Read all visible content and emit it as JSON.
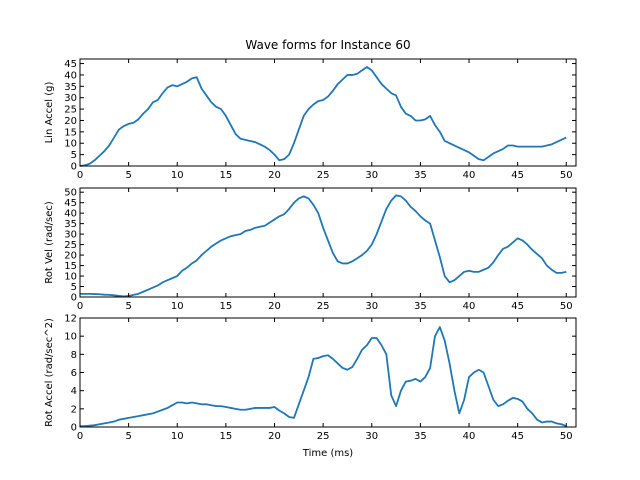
{
  "figure": {
    "title": "Wave forms for Instance 60",
    "line_color": "#1f77b4"
  },
  "chart_data": [
    {
      "type": "line",
      "ylabel": "Lin Accel (g)",
      "xlabel": "",
      "xlim": [
        0,
        51
      ],
      "ylim": [
        0,
        47
      ],
      "xticks": [
        0,
        5,
        10,
        15,
        20,
        25,
        30,
        35,
        40,
        45,
        50
      ],
      "yticks": [
        0,
        5,
        10,
        15,
        20,
        25,
        30,
        35,
        40,
        45
      ],
      "x": [
        0,
        0.5,
        1,
        1.5,
        2,
        2.5,
        3,
        3.5,
        4,
        4.5,
        5,
        5.5,
        6,
        6.5,
        7,
        7.5,
        8,
        8.5,
        9,
        9.5,
        10,
        10.5,
        11,
        11.5,
        12,
        12.5,
        13,
        13.5,
        14,
        14.5,
        15,
        15.5,
        16,
        16.5,
        17,
        17.5,
        18,
        18.5,
        19,
        19.5,
        20,
        20.5,
        21,
        21.5,
        22,
        22.5,
        23,
        23.5,
        24,
        24.5,
        25,
        25.5,
        26,
        26.5,
        27,
        27.5,
        28,
        28.5,
        29,
        29.5,
        30,
        30.5,
        31,
        31.5,
        32,
        32.5,
        33,
        33.5,
        34,
        34.5,
        35,
        35.5,
        36,
        36.5,
        37,
        37.5,
        38,
        38.5,
        39,
        39.5,
        40,
        40.5,
        41,
        41.5,
        42,
        42.5,
        43,
        43.5,
        44,
        44.5,
        45,
        45.5,
        46,
        46.5,
        47,
        47.5,
        48,
        48.5,
        49,
        49.5,
        50
      ],
      "y": [
        0,
        0.3,
        1,
        2.5,
        4.5,
        6.5,
        9,
        12.5,
        16,
        17.5,
        18.5,
        19,
        20.5,
        23,
        25,
        28,
        29,
        32,
        34.5,
        35.5,
        35,
        36,
        37,
        38.5,
        39,
        34,
        31,
        28,
        26,
        25,
        22,
        18,
        14,
        12,
        11.5,
        11,
        10.5,
        9.5,
        8.5,
        7,
        5,
        2.5,
        3,
        5,
        10,
        16,
        22,
        25,
        27,
        28.5,
        29,
        30.5,
        33,
        36,
        38,
        40,
        40,
        40.5,
        42,
        43.5,
        42,
        39,
        36,
        34,
        32,
        31,
        26,
        23,
        22,
        20,
        20,
        20.5,
        22,
        18,
        15,
        11,
        10,
        9,
        8,
        7,
        6,
        4.5,
        3,
        2.5,
        4,
        5.5,
        6.5,
        7.5,
        9,
        9,
        8.5,
        8.5,
        8.5,
        8.5,
        8.5,
        8.5,
        9,
        9.5,
        10.5,
        11.5,
        12.5
      ]
    },
    {
      "type": "line",
      "ylabel": "Rot Vel (rad/sec)",
      "xlabel": "",
      "xlim": [
        0,
        51
      ],
      "ylim": [
        0,
        52
      ],
      "xticks": [
        0,
        5,
        10,
        15,
        20,
        25,
        30,
        35,
        40,
        45,
        50
      ],
      "yticks": [
        0,
        5,
        10,
        15,
        20,
        25,
        30,
        35,
        40,
        45,
        50
      ],
      "x": [
        0,
        0.5,
        1,
        1.5,
        2,
        2.5,
        3,
        3.5,
        4,
        4.5,
        5,
        5.5,
        6,
        6.5,
        7,
        7.5,
        8,
        8.5,
        9,
        9.5,
        10,
        10.5,
        11,
        11.5,
        12,
        12.5,
        13,
        13.5,
        14,
        14.5,
        15,
        15.5,
        16,
        16.5,
        17,
        17.5,
        18,
        18.5,
        19,
        19.5,
        20,
        20.5,
        21,
        21.5,
        22,
        22.5,
        23,
        23.5,
        24,
        24.5,
        25,
        25.5,
        26,
        26.5,
        27,
        27.5,
        28,
        28.5,
        29,
        29.5,
        30,
        30.5,
        31,
        31.5,
        32,
        32.5,
        33,
        33.5,
        34,
        34.5,
        35,
        35.5,
        36,
        36.5,
        37,
        37.5,
        38,
        38.5,
        39,
        39.5,
        40,
        40.5,
        41,
        41.5,
        42,
        42.5,
        43,
        43.5,
        44,
        44.5,
        45,
        45.5,
        46,
        46.5,
        47,
        47.5,
        48,
        48.5,
        49,
        49.5,
        50
      ],
      "y": [
        1.5,
        1.5,
        1.5,
        1.4,
        1.3,
        1.1,
        1,
        0.8,
        0.5,
        0.3,
        0.5,
        1,
        1.5,
        2.5,
        3.5,
        4.5,
        5.5,
        7,
        8,
        9,
        10,
        12.5,
        14,
        16,
        17.5,
        20,
        22,
        24,
        25.5,
        27,
        28,
        29,
        29.5,
        30,
        31.5,
        32,
        33,
        33.5,
        34,
        35.5,
        37,
        38.5,
        39.5,
        42,
        45,
        47,
        48,
        47,
        44,
        40,
        33,
        27,
        21,
        17,
        16,
        16,
        17,
        18.5,
        20,
        22,
        25,
        30,
        36,
        42,
        46,
        48.5,
        48,
        46,
        43,
        41,
        38.5,
        36.5,
        35,
        27,
        19,
        10,
        7,
        8,
        10,
        12,
        12.5,
        12,
        12,
        13,
        14,
        16.5,
        20,
        23,
        24,
        26,
        28,
        27,
        25,
        22.5,
        20.5,
        18.5,
        15,
        13,
        11.5,
        11.5,
        12
      ]
    },
    {
      "type": "line",
      "ylabel": "Rot Accel (rad/sec^2)",
      "xlabel": "Time (ms)",
      "xlim": [
        0,
        51
      ],
      "ylim": [
        0,
        12
      ],
      "xticks": [
        0,
        5,
        10,
        15,
        20,
        25,
        30,
        35,
        40,
        45,
        50
      ],
      "yticks": [
        0,
        2,
        4,
        6,
        8,
        10,
        12
      ],
      "x": [
        0,
        0.5,
        1,
        1.5,
        2,
        2.5,
        3,
        3.5,
        4,
        4.5,
        5,
        5.5,
        6,
        6.5,
        7,
        7.5,
        8,
        8.5,
        9,
        9.5,
        10,
        10.5,
        11,
        11.5,
        12,
        12.5,
        13,
        13.5,
        14,
        14.5,
        15,
        15.5,
        16,
        16.5,
        17,
        17.5,
        18,
        18.5,
        19,
        19.5,
        20,
        20.5,
        21,
        21.5,
        22,
        22.5,
        23,
        23.5,
        24,
        24.5,
        25,
        25.5,
        26,
        26.5,
        27,
        27.5,
        28,
        28.5,
        29,
        29.5,
        30,
        30.5,
        31,
        31.5,
        32,
        32.5,
        33,
        33.5,
        34,
        34.5,
        35,
        35.5,
        36,
        36.5,
        37,
        37.5,
        38,
        38.5,
        39,
        39.5,
        40,
        40.5,
        41,
        41.5,
        42,
        42.5,
        43,
        43.5,
        44,
        44.5,
        45,
        45.5,
        46,
        46.5,
        47,
        47.5,
        48,
        48.5,
        49,
        49.5,
        50
      ],
      "y": [
        0.1,
        0.1,
        0.15,
        0.2,
        0.3,
        0.4,
        0.5,
        0.6,
        0.8,
        0.9,
        1,
        1.1,
        1.2,
        1.3,
        1.4,
        1.5,
        1.7,
        1.9,
        2.1,
        2.4,
        2.7,
        2.7,
        2.6,
        2.7,
        2.6,
        2.5,
        2.5,
        2.4,
        2.3,
        2.3,
        2.2,
        2.1,
        2,
        1.9,
        1.9,
        2,
        2.1,
        2.1,
        2.1,
        2.1,
        2.2,
        1.8,
        1.5,
        1.1,
        1,
        2.5,
        4,
        5.5,
        7.5,
        7.6,
        7.8,
        7.9,
        7.5,
        7,
        6.5,
        6.3,
        6.6,
        7.5,
        8.5,
        9,
        9.8,
        9.8,
        9,
        8,
        3.5,
        2.3,
        4,
        5,
        5.1,
        5.3,
        5,
        5.5,
        6.5,
        10,
        11,
        9.5,
        7,
        4,
        1.5,
        3,
        5.5,
        6,
        6.3,
        6,
        4.5,
        3,
        2.3,
        2.5,
        2.9,
        3.2,
        3.1,
        2.8,
        2,
        1.5,
        0.8,
        0.5,
        0.6,
        0.6,
        0.4,
        0.3,
        0.1
      ]
    }
  ]
}
